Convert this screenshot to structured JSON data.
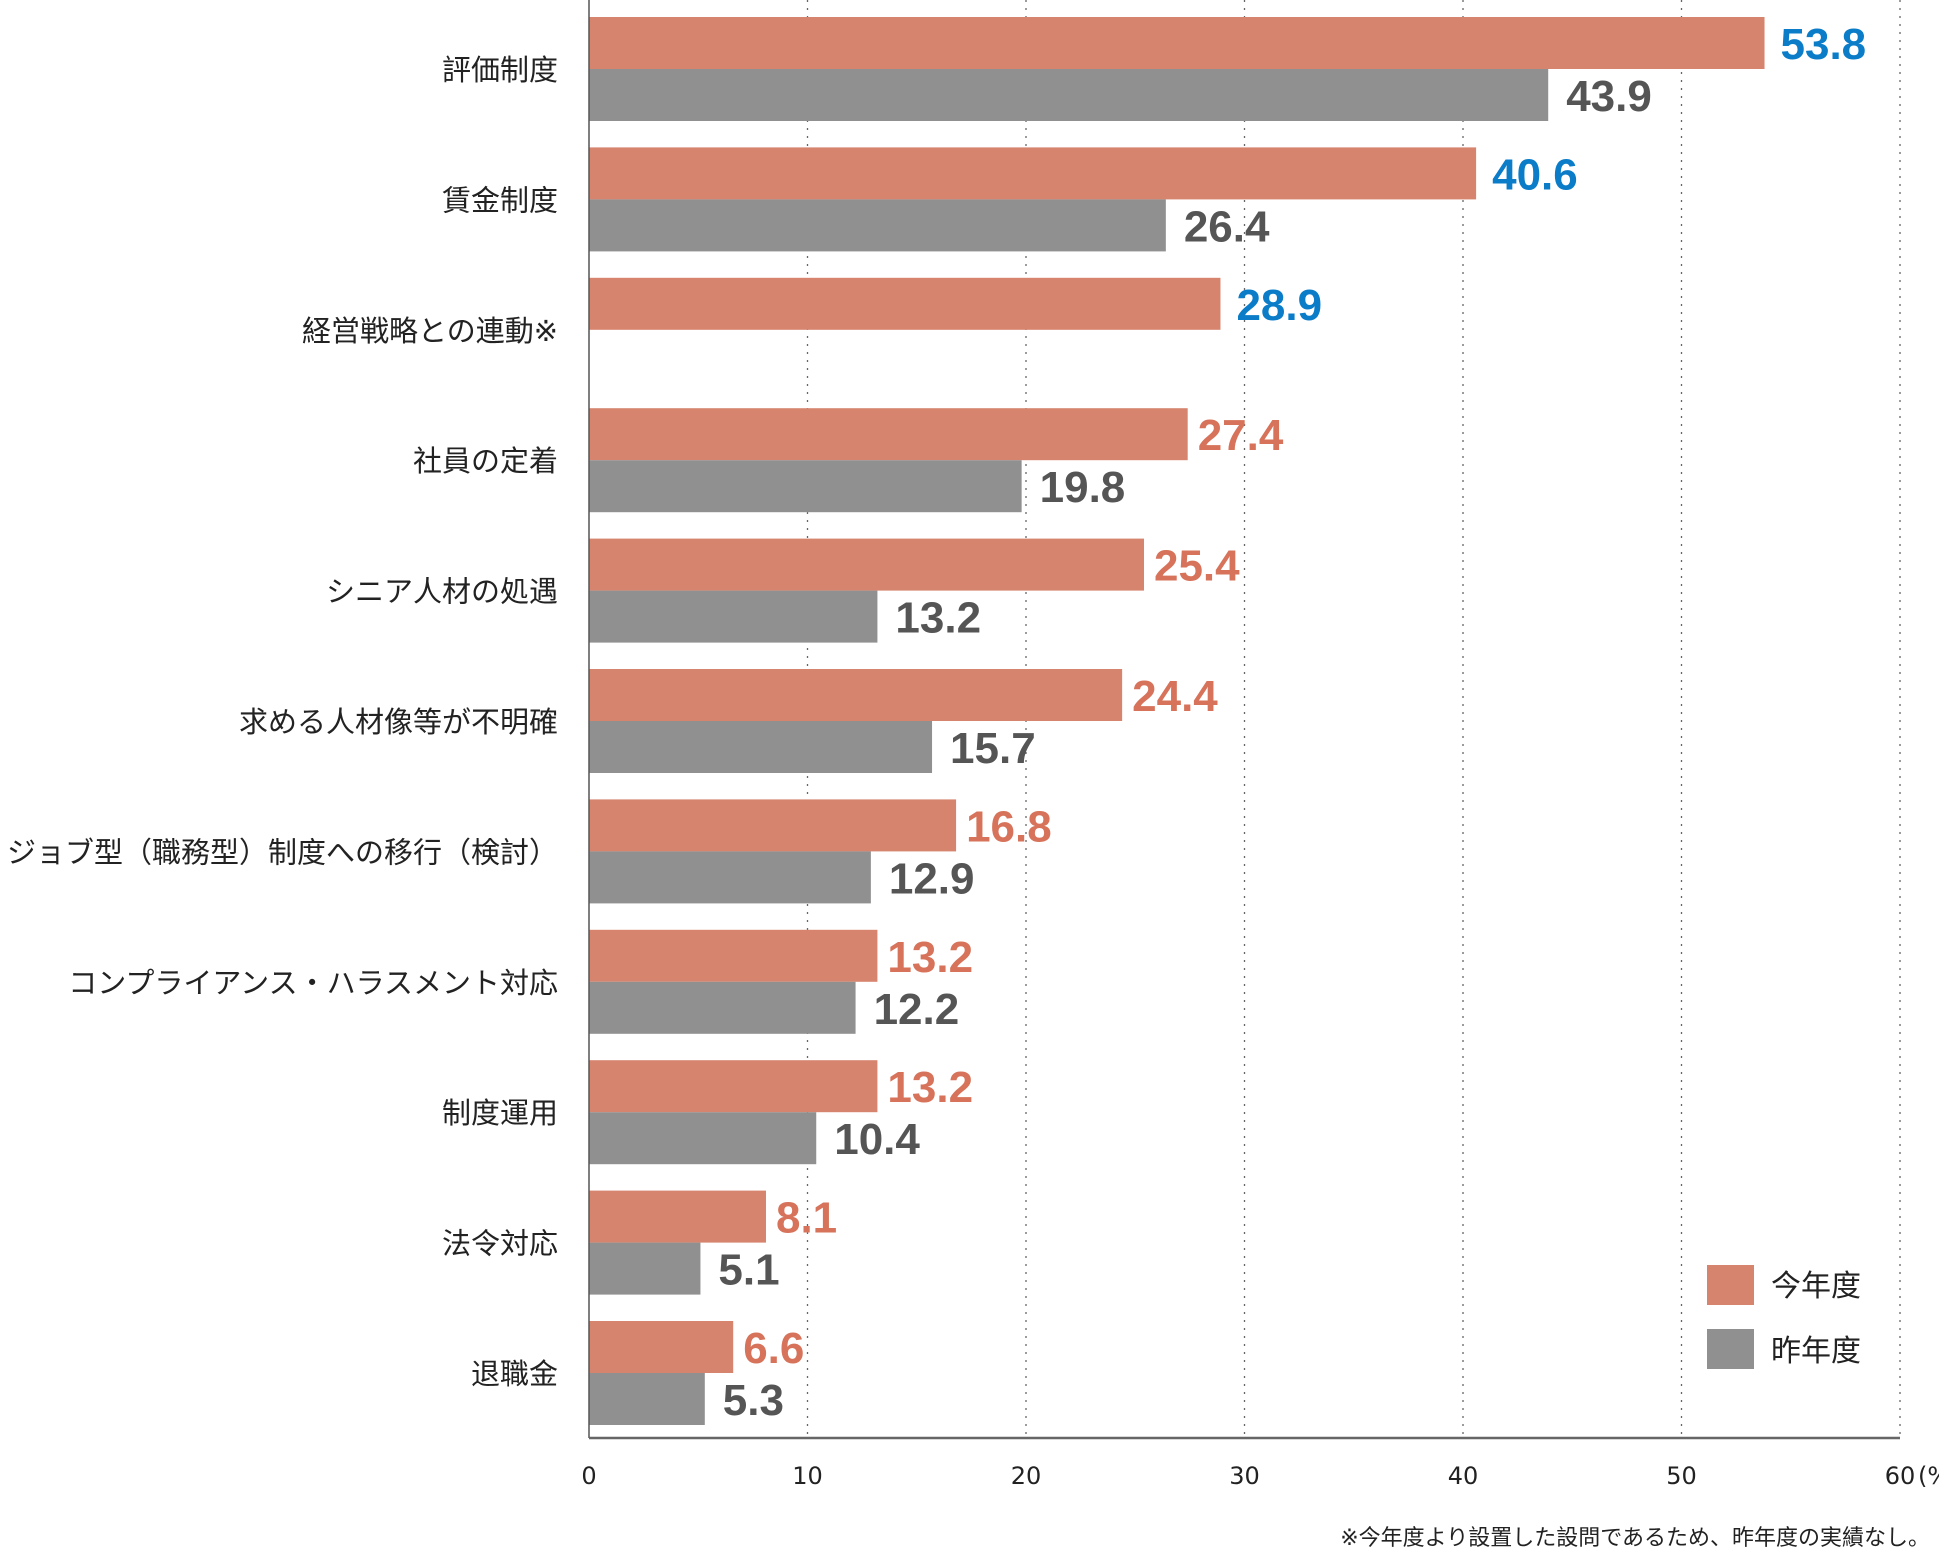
{
  "chart_data": {
    "type": "bar",
    "orientation": "horizontal",
    "categories": [
      "評価制度",
      "賃金制度",
      "経営戦略との連動※",
      "社員の定着",
      "シニア人材の処遇",
      "求める人材像等が不明確",
      "ジョブ型（職務型）制度への移行（検討）",
      "コンプライアンス・ハラスメント対応",
      "制度運用",
      "法令対応",
      "退職金"
    ],
    "series": [
      {
        "name": "今年度",
        "color": "#d6846d",
        "label_color": "#d6735a",
        "values": [
          53.8,
          40.6,
          28.9,
          27.4,
          25.4,
          24.4,
          16.8,
          13.2,
          13.2,
          8.1,
          6.6
        ]
      },
      {
        "name": "昨年度",
        "color": "#909090",
        "label_color": "#555555",
        "values": [
          43.9,
          26.4,
          null,
          19.8,
          13.2,
          15.7,
          12.9,
          12.2,
          10.4,
          5.1,
          5.3
        ]
      }
    ],
    "highlight_color": "#0a7cc8",
    "highlighted_top": 3,
    "xlim": [
      0,
      60
    ],
    "xticks": [
      "0",
      "10",
      "20",
      "30",
      "40",
      "50",
      "60"
    ],
    "xunit": "(%)",
    "grid": "vertical dotted",
    "legend_position": "bottom-right",
    "footnote": "※今年度より設置した設問であるため、昨年度の実績なし。"
  }
}
